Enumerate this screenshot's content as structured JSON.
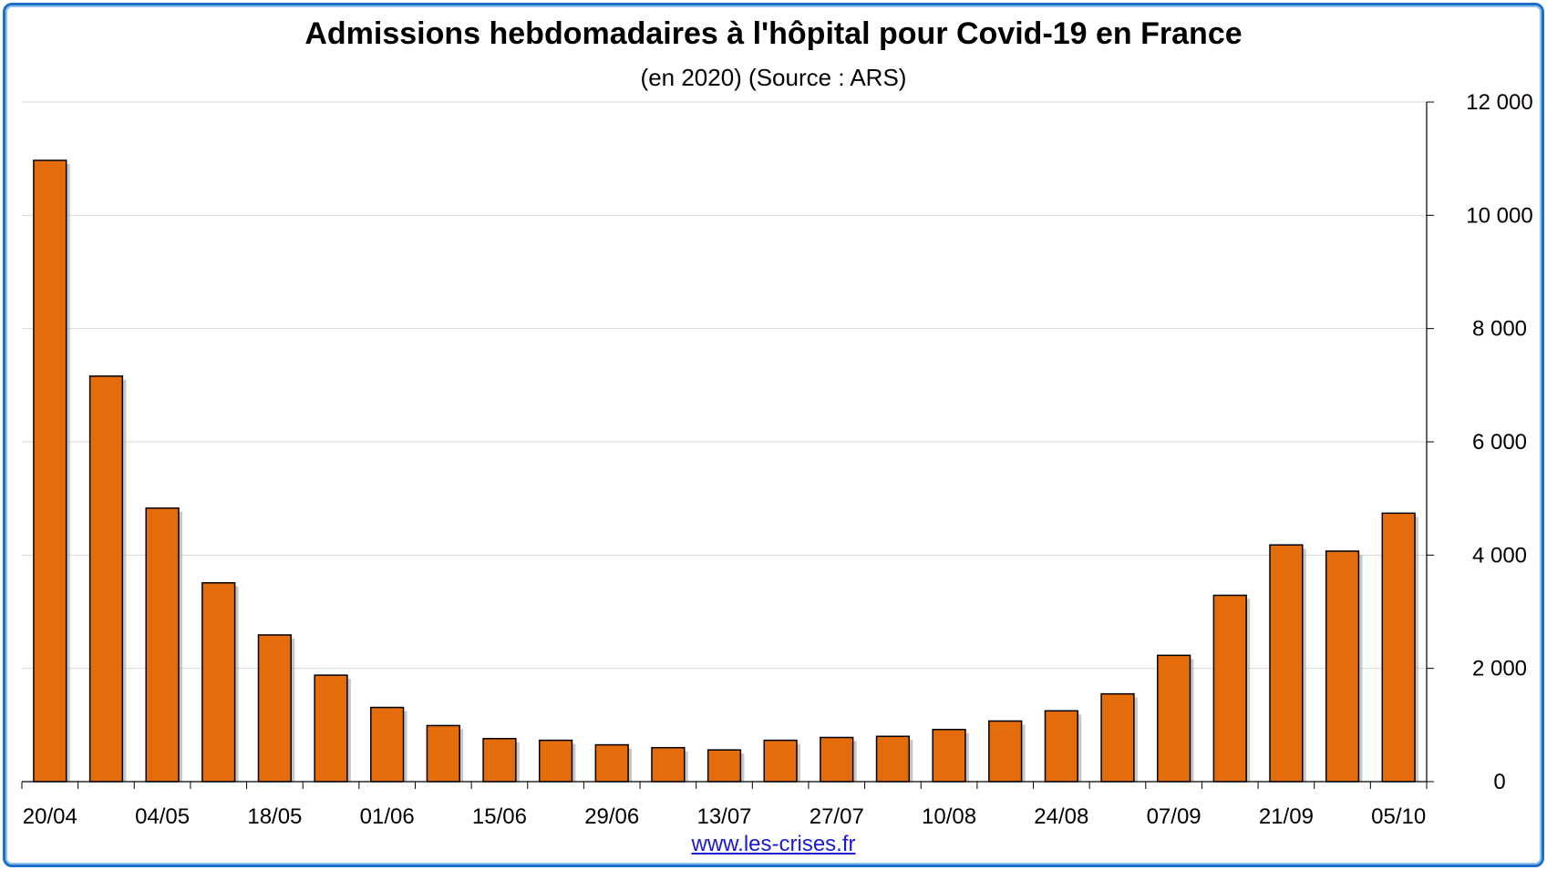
{
  "chart_data": {
    "type": "bar",
    "title": "Admissions hebdomadaires à l'hôpital pour Covid-19 en France",
    "subtitle": "(en 2020) (Source : ARS)",
    "source": "www.les-crises.fr",
    "x_tick_labels": [
      "20/04",
      "04/05",
      "18/05",
      "01/06",
      "15/06",
      "29/06",
      "13/07",
      "27/07",
      "10/08",
      "24/08",
      "07/09",
      "21/09",
      "05/10"
    ],
    "values": [
      10970,
      7160,
      4830,
      3510,
      2590,
      1880,
      1310,
      990,
      760,
      730,
      650,
      600,
      560,
      730,
      780,
      800,
      920,
      1070,
      1250,
      1550,
      2230,
      3290,
      4180,
      4070,
      4740
    ],
    "y_ticks": [
      "12 000",
      "10 000",
      "8 000",
      "6 000",
      "4 000",
      "2 000",
      "0"
    ],
    "ylim": [
      0,
      12000
    ],
    "y_axis_side": "right",
    "grid": true,
    "colors": {
      "bar": "#e46c0a",
      "bar_stroke": "#000000",
      "grid": "#d9d9d9",
      "frame": "#1f6fc6",
      "link": "#1a1ad6"
    }
  }
}
